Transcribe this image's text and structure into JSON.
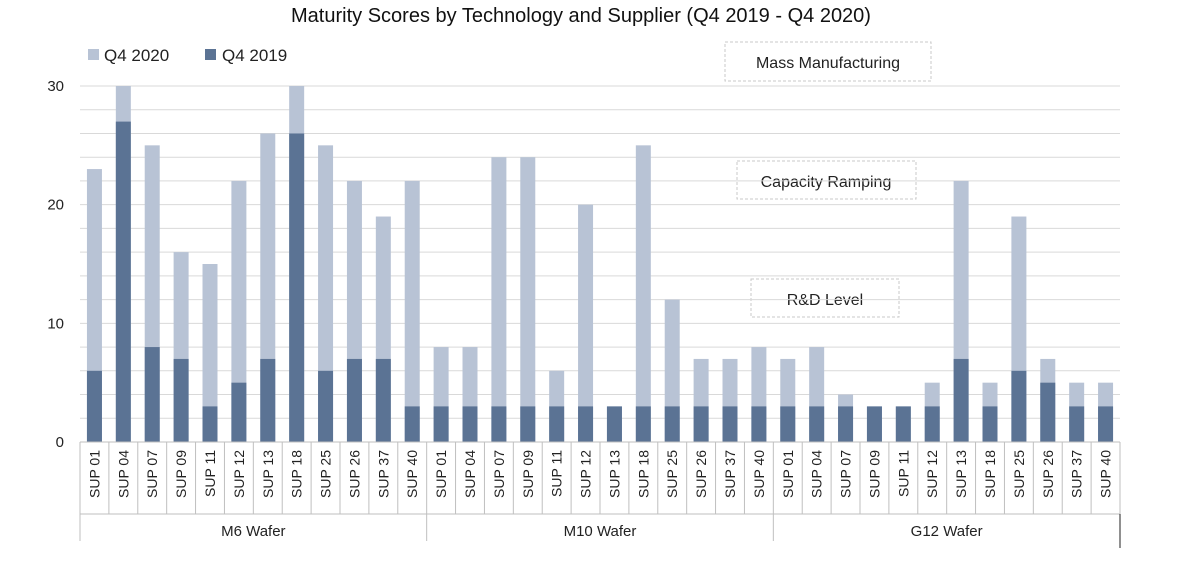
{
  "chart_data": {
    "type": "bar",
    "stacked": true,
    "title": "Maturity Scores by Technology and Supplier (Q4 2019 - Q4 2020)",
    "xlabel": "",
    "ylabel": "",
    "ylim": [
      0,
      30
    ],
    "yticks": [
      0,
      10,
      20,
      30
    ],
    "grid": true,
    "legend": {
      "position": "top-left",
      "entries": [
        "Q4 2020",
        "Q4 2019"
      ]
    },
    "colors": {
      "q4_2019": "#5b7394",
      "q4_2020": "#b8c3d5",
      "grid": "#d9d9d9",
      "axis": "#bfbfbf"
    },
    "groups": [
      {
        "name": "M6 Wafer",
        "categories": [
          "SUP 01",
          "SUP 04",
          "SUP 07",
          "SUP 09",
          "SUP 11",
          "SUP 12",
          "SUP 13",
          "SUP 18",
          "SUP 25",
          "SUP 26",
          "SUP 37",
          "SUP 40"
        ],
        "q4_2019": [
          6,
          27,
          8,
          7,
          3,
          5,
          7,
          26,
          6,
          7,
          7,
          3
        ],
        "q4_2020": [
          23,
          30,
          25,
          16,
          15,
          22,
          26,
          30,
          25,
          22,
          19,
          22
        ]
      },
      {
        "name": "M10 Wafer",
        "categories": [
          "SUP 01",
          "SUP 04",
          "SUP 07",
          "SUP 09",
          "SUP 11",
          "SUP 12",
          "SUP 13",
          "SUP 18",
          "SUP 25",
          "SUP 26",
          "SUP 37",
          "SUP 40"
        ],
        "q4_2019": [
          3,
          3,
          3,
          3,
          3,
          3,
          3,
          3,
          3,
          3,
          3,
          3
        ],
        "q4_2020": [
          8,
          8,
          24,
          24,
          6,
          20,
          3,
          25,
          12,
          7,
          7,
          8
        ]
      },
      {
        "name": "G12 Wafer",
        "categories": [
          "SUP 01",
          "SUP 04",
          "SUP 07",
          "SUP 09",
          "SUP 11",
          "SUP 12",
          "SUP 13",
          "SUP 18",
          "SUP 25",
          "SUP 26",
          "SUP 37",
          "SUP 40"
        ],
        "q4_2019": [
          3,
          3,
          3,
          3,
          3,
          3,
          7,
          3,
          6,
          5,
          3,
          3
        ],
        "q4_2020": [
          7,
          8,
          4,
          3,
          3,
          5,
          22,
          5,
          19,
          7,
          5,
          5
        ]
      }
    ],
    "series": [
      {
        "name": "Q4 2020",
        "color": "#b8c3d5"
      },
      {
        "name": "Q4 2019",
        "color": "#5b7394"
      }
    ],
    "annotations": [
      "Mass Manufacturing",
      "Capacity Ramping",
      "R&D Level"
    ]
  }
}
